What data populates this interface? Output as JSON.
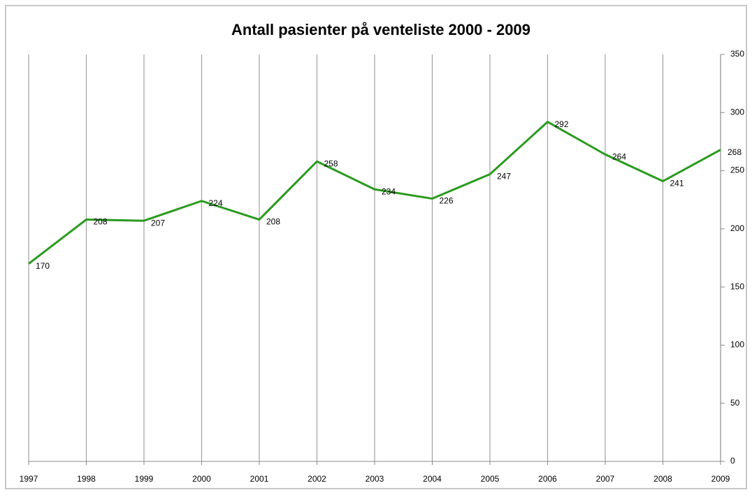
{
  "chart_data": {
    "type": "line",
    "title": "Antall pasienter på venteliste 2000 - 2009",
    "categories": [
      "1997",
      "1998",
      "1999",
      "2000",
      "2001",
      "2002",
      "2003",
      "2004",
      "2005",
      "2006",
      "2007",
      "2008",
      "2009"
    ],
    "series": [
      {
        "name": "Antall pasienter",
        "color": "#2a9a1e",
        "values": [
          170,
          208,
          207,
          224,
          208,
          258,
          234,
          226,
          247,
          292,
          264,
          241,
          268
        ]
      }
    ],
    "ylim": [
      0,
      350
    ],
    "yticks": [
      0,
      50,
      100,
      150,
      200,
      250,
      300,
      350
    ],
    "yaxis_side": "right",
    "grid": "x",
    "legend": false
  }
}
